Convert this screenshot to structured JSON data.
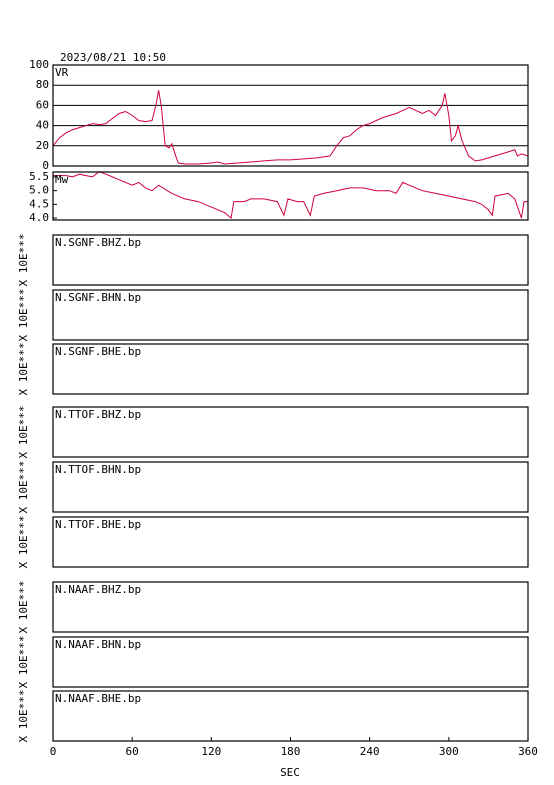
{
  "title": "2023/08/21 10:50",
  "x_axis": {
    "label": "SEC",
    "xlim": [
      0,
      360
    ],
    "xticks": [
      0,
      60,
      120,
      180,
      240,
      300,
      360
    ]
  },
  "chart_data": [
    {
      "type": "line",
      "ylabel": "VR",
      "color": "#d0003a",
      "ylim": [
        0,
        100
      ],
      "yticks": [
        0,
        20,
        40,
        60,
        80,
        100
      ],
      "grid": true,
      "x": [
        0,
        5,
        10,
        15,
        20,
        25,
        30,
        35,
        40,
        45,
        50,
        55,
        60,
        65,
        70,
        75,
        78,
        80,
        82,
        85,
        88,
        90,
        93,
        95,
        100,
        110,
        120,
        125,
        130,
        140,
        150,
        160,
        170,
        180,
        190,
        200,
        210,
        215,
        220,
        225,
        230,
        235,
        240,
        245,
        250,
        255,
        260,
        265,
        270,
        275,
        280,
        285,
        290,
        295,
        297,
        300,
        302,
        305,
        307,
        310,
        315,
        320,
        325,
        330,
        335,
        340,
        345,
        350,
        352,
        355,
        360
      ],
      "values": [
        20,
        28,
        33,
        36,
        38,
        40,
        42,
        41,
        42,
        47,
        52,
        54,
        50,
        45,
        44,
        45,
        60,
        75,
        60,
        20,
        18,
        22,
        10,
        3,
        2,
        2,
        3,
        4,
        2,
        3,
        4,
        5,
        6,
        6,
        7,
        8,
        10,
        20,
        28,
        30,
        36,
        40,
        42,
        45,
        48,
        50,
        52,
        55,
        58,
        55,
        52,
        55,
        50,
        60,
        72,
        50,
        25,
        30,
        40,
        25,
        10,
        5,
        6,
        8,
        10,
        12,
        14,
        16,
        10,
        12,
        10
      ]
    },
    {
      "type": "line",
      "ylabel": "Mw",
      "color": "#d0003a",
      "ylim": [
        3.93,
        5.68
      ],
      "yticks": [
        {
          "value": 4,
          "label": "4.0"
        },
        4.5,
        {
          "value": 5,
          "label": "5.0"
        },
        5.5
      ],
      "grid": false,
      "x": [
        0,
        10,
        15,
        20,
        25,
        30,
        35,
        40,
        45,
        50,
        55,
        60,
        65,
        70,
        75,
        80,
        90,
        100,
        110,
        120,
        130,
        135,
        137,
        140,
        145,
        150,
        160,
        170,
        175,
        178,
        185,
        190,
        195,
        198,
        205,
        215,
        225,
        235,
        245,
        255,
        260,
        265,
        270,
        280,
        290,
        300,
        310,
        320,
        325,
        330,
        333,
        335,
        345,
        350,
        355,
        357,
        360
      ],
      "values": [
        5.55,
        5.55,
        5.5,
        5.6,
        5.55,
        5.5,
        5.7,
        5.6,
        5.5,
        5.4,
        5.3,
        5.2,
        5.3,
        5.1,
        5.0,
        5.2,
        4.9,
        4.7,
        4.6,
        4.4,
        4.2,
        4.0,
        4.6,
        4.6,
        4.6,
        4.7,
        4.7,
        4.6,
        4.1,
        4.7,
        4.6,
        4.6,
        4.1,
        4.8,
        4.9,
        5.0,
        5.1,
        5.1,
        5.0,
        5.0,
        4.9,
        5.3,
        5.2,
        5.0,
        4.9,
        4.8,
        4.7,
        4.6,
        4.5,
        4.3,
        4.1,
        4.8,
        4.9,
        4.7,
        4.0,
        4.6,
        4.6
      ]
    }
  ],
  "panels": [
    {
      "label": "N.SGNF.BHZ.bp",
      "ylabel": "X 10E***"
    },
    {
      "label": "N.SGNF.BHN.bp",
      "ylabel": "X 10E***"
    },
    {
      "label": "N.SGNF.BHE.bp",
      "ylabel": "X 10E***"
    },
    {
      "label": "N.TTOF.BHZ.bp",
      "ylabel": "X 10E***"
    },
    {
      "label": "N.TTOF.BHN.bp",
      "ylabel": "X 10E***"
    },
    {
      "label": "N.TTOF.BHE.bp",
      "ylabel": "X 10E***"
    },
    {
      "label": "N.NAAF.BHZ.bp",
      "ylabel": "X 10E***"
    },
    {
      "label": "N.NAAF.BHN.bp",
      "ylabel": "X 10E***"
    },
    {
      "label": "N.NAAF.BHE.bp",
      "ylabel": "X 10E***"
    }
  ]
}
